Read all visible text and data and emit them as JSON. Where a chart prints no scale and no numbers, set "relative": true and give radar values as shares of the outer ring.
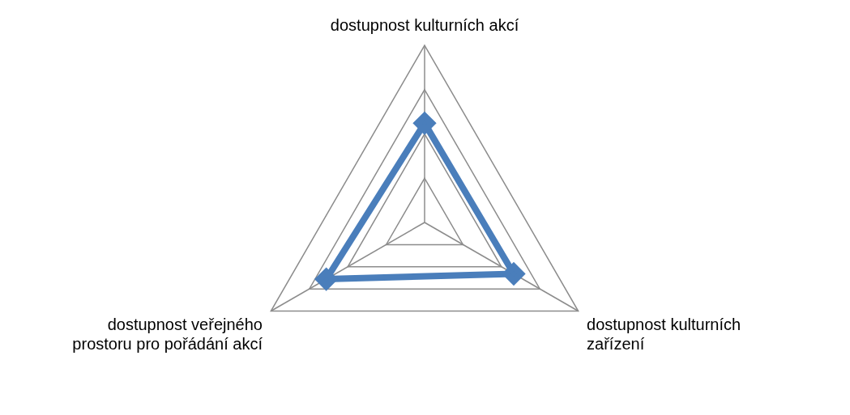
{
  "chart_data": {
    "type": "radar",
    "relative": true,
    "categories": [
      "dostupnost kulturních akcí",
      "dostupnost kulturních zařízení",
      "dostupnost veřejného prostoru pro pořádání akcí"
    ],
    "series": [
      {
        "color": "#4a7ebb",
        "values": [
          0.56,
          0.58,
          0.64
        ]
      }
    ],
    "marker": "diamond",
    "legend": false
  }
}
